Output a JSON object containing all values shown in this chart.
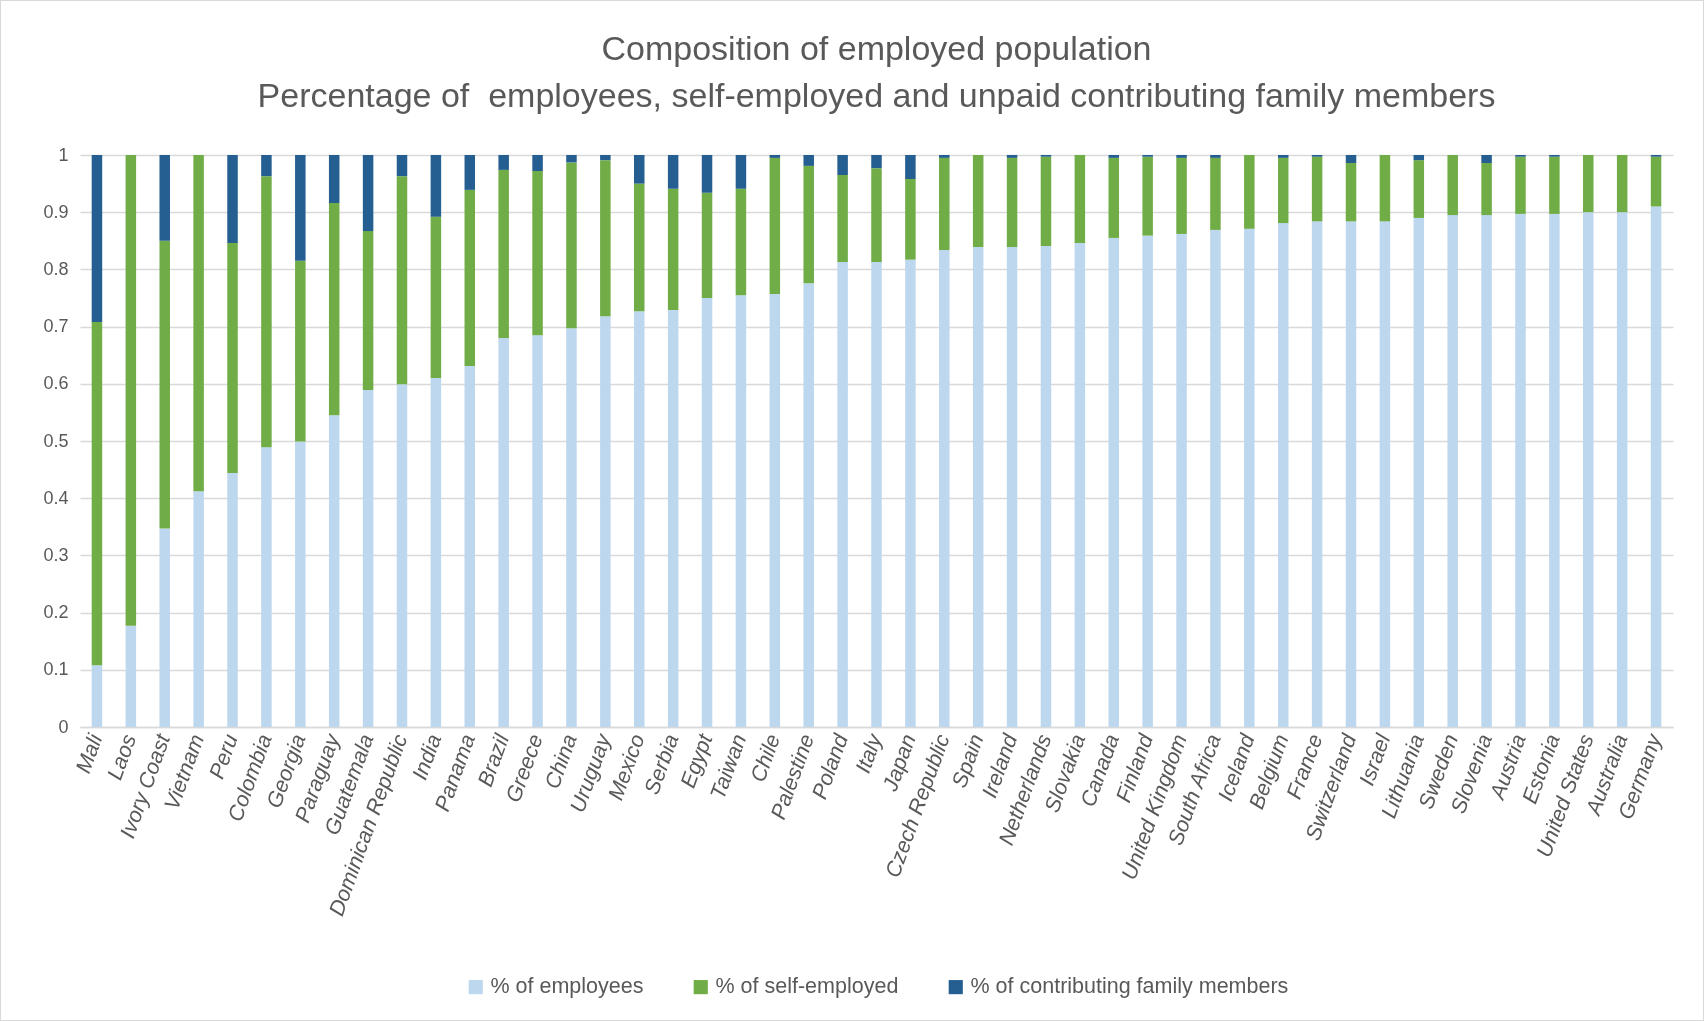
{
  "chart_data": {
    "type": "bar",
    "title": "Composition of employed population",
    "subtitle": "Percentage of  employees, self-employed and unpaid contributing family members",
    "categories": [
      "Mali",
      "Laos",
      "Ivory Coast",
      "Vietnam",
      "Peru",
      "Colombia",
      "Georgia",
      "Paraguay",
      "Guatemala",
      "Dominican Republic",
      "India",
      "Panama",
      "Brazil",
      "Greece",
      "China",
      "Uruguay",
      "Mexico",
      "Serbia",
      "Egypt",
      "Taiwan",
      "Chile",
      "Palestine",
      "Poland",
      "Italy",
      "Japan",
      "Czech Republic",
      "Spain",
      "Ireland",
      "Netherlands",
      "Slovakia",
      "Canada",
      "Finland",
      "United Kingdom",
      "South Africa",
      "Iceland",
      "Belgium",
      "France",
      "Switzerland",
      "Israel",
      "Lithuania",
      "Sweden",
      "Slovenia",
      "Austria",
      "Estonia",
      "United States",
      "Australia",
      "Germany"
    ],
    "series": [
      {
        "name": "% of employees",
        "color": "#bdd7ee",
        "values": [
          0.108,
          0.177,
          0.347,
          0.412,
          0.444,
          0.489,
          0.499,
          0.545,
          0.589,
          0.599,
          0.61,
          0.631,
          0.68,
          0.685,
          0.697,
          0.718,
          0.727,
          0.729,
          0.75,
          0.755,
          0.757,
          0.776,
          0.813,
          0.813,
          0.817,
          0.834,
          0.839,
          0.839,
          0.841,
          0.846,
          0.855,
          0.859,
          0.862,
          0.869,
          0.871,
          0.881,
          0.884,
          0.884,
          0.884,
          0.89,
          0.895,
          0.895,
          0.897,
          0.897,
          0.9,
          0.9,
          0.91
        ]
      },
      {
        "name": "% of self-employed",
        "color": "#70ad47",
        "values": [
          0.6,
          0.823,
          0.503,
          0.588,
          0.402,
          0.474,
          0.316,
          0.371,
          0.278,
          0.364,
          0.282,
          0.308,
          0.294,
          0.287,
          0.29,
          0.273,
          0.223,
          0.212,
          0.184,
          0.186,
          0.238,
          0.205,
          0.152,
          0.164,
          0.141,
          0.161,
          0.161,
          0.156,
          0.156,
          0.154,
          0.14,
          0.138,
          0.133,
          0.126,
          0.129,
          0.114,
          0.113,
          0.102,
          0.116,
          0.101,
          0.105,
          0.091,
          0.1,
          0.1,
          0.1,
          0.1,
          0.087
        ]
      },
      {
        "name": "% of contributing family members",
        "color": "#255e91",
        "values": [
          0.292,
          0,
          0.15,
          0,
          0.154,
          0.037,
          0.185,
          0.084,
          0.133,
          0.037,
          0.108,
          0.061,
          0.026,
          0.028,
          0.013,
          0.009,
          0.05,
          0.059,
          0.066,
          0.059,
          0.005,
          0.019,
          0.035,
          0.023,
          0.042,
          0.005,
          0,
          0.005,
          0.003,
          0,
          0.005,
          0.003,
          0.005,
          0.005,
          0,
          0.005,
          0.003,
          0.014,
          0,
          0.009,
          0,
          0.014,
          0.003,
          0.003,
          0,
          0,
          0.003
        ]
      }
    ],
    "stacked": true,
    "ylim": [
      0,
      1
    ],
    "yticks": [
      0,
      0.1,
      0.2,
      0.3,
      0.4,
      0.5,
      0.6,
      0.7,
      0.8,
      0.9,
      1
    ],
    "grid": "y",
    "legend": "bottom"
  }
}
